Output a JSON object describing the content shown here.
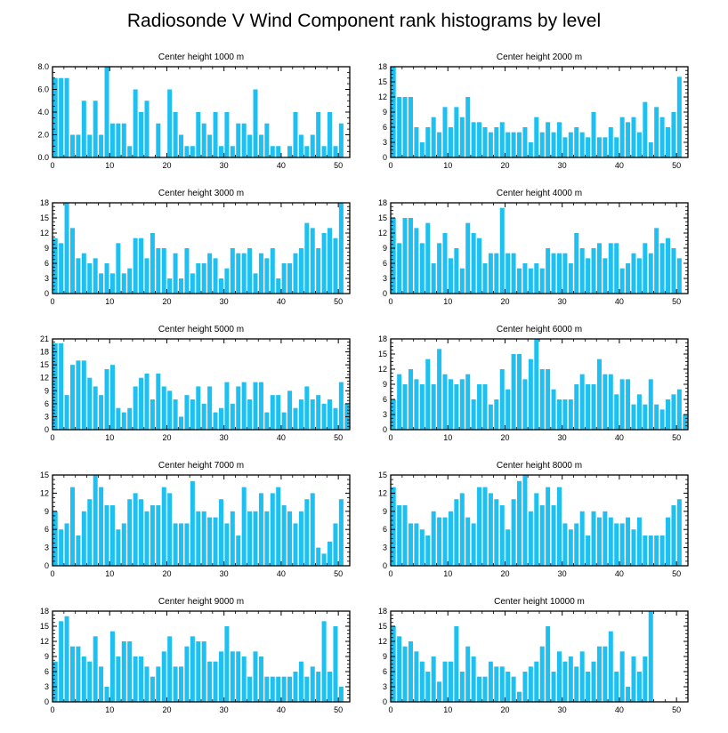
{
  "page_title": "Radiosonde V Wind Component rank histograms by level",
  "colors": {
    "bar": "#1ec0f2",
    "axis": "#000000",
    "background": "#ffffff"
  },
  "chart_data": [
    {
      "type": "bar",
      "title": "Center height 1000 m",
      "x": [
        0,
        1,
        2,
        3,
        4,
        5,
        6,
        7,
        8,
        9,
        10,
        11,
        12,
        13,
        14,
        15,
        16,
        17,
        18,
        19,
        20,
        21,
        22,
        23,
        24,
        25,
        26,
        27,
        28,
        29,
        30,
        31,
        32,
        33,
        34,
        35,
        36,
        37,
        38,
        39,
        40,
        41,
        42,
        43,
        44,
        45,
        46,
        47,
        48,
        49,
        50,
        51
      ],
      "values": [
        7,
        7,
        7,
        2,
        2,
        5,
        2,
        5,
        2,
        8,
        3,
        3,
        3,
        1,
        6,
        4,
        5,
        0,
        3,
        0,
        6,
        4,
        2,
        1,
        1,
        4,
        3,
        2,
        4,
        1,
        4,
        1,
        3,
        3,
        2,
        6,
        2,
        3,
        1,
        1,
        0,
        1,
        4,
        2,
        1,
        2,
        4,
        1,
        4,
        1,
        3,
        0
      ],
      "yticks": [
        "0.0",
        "2.0",
        "4.0",
        "6.0",
        "8.0"
      ],
      "ylim": [
        0,
        8
      ],
      "xticks": [
        "0",
        "10",
        "20",
        "30",
        "40",
        "50"
      ],
      "xlim": [
        0,
        52
      ]
    },
    {
      "type": "bar",
      "title": "Center height 2000 m",
      "x": [
        0,
        1,
        2,
        3,
        4,
        5,
        6,
        7,
        8,
        9,
        10,
        11,
        12,
        13,
        14,
        15,
        16,
        17,
        18,
        19,
        20,
        21,
        22,
        23,
        24,
        25,
        26,
        27,
        28,
        29,
        30,
        31,
        32,
        33,
        34,
        35,
        36,
        37,
        38,
        39,
        40,
        41,
        42,
        43,
        44,
        45,
        46,
        47,
        48,
        49,
        50,
        51
      ],
      "values": [
        18,
        12,
        12,
        12,
        6,
        3,
        6,
        8,
        5,
        10,
        6,
        10,
        8,
        12,
        7,
        7,
        6,
        5,
        6,
        7,
        5,
        5,
        5,
        6,
        3,
        8,
        5,
        7,
        5,
        7,
        4,
        5,
        6,
        5,
        4,
        9,
        4,
        4,
        6,
        4,
        8,
        7,
        8,
        5,
        11,
        3,
        10,
        8,
        6,
        9,
        16,
        0
      ],
      "yticks": [
        "0",
        "3",
        "6",
        "9",
        "12",
        "15",
        "18"
      ],
      "ylim": [
        0,
        18
      ],
      "xticks": [
        "0",
        "10",
        "20",
        "30",
        "40",
        "50"
      ],
      "xlim": [
        0,
        52
      ]
    },
    {
      "type": "bar",
      "title": "Center height 3000 m",
      "x": [
        0,
        1,
        2,
        3,
        4,
        5,
        6,
        7,
        8,
        9,
        10,
        11,
        12,
        13,
        14,
        15,
        16,
        17,
        18,
        19,
        20,
        21,
        22,
        23,
        24,
        25,
        26,
        27,
        28,
        29,
        30,
        31,
        32,
        33,
        34,
        35,
        36,
        37,
        38,
        39,
        40,
        41,
        42,
        43,
        44,
        45,
        46,
        47,
        48,
        49,
        50,
        51
      ],
      "values": [
        11,
        10,
        18,
        13,
        7,
        8,
        6,
        7,
        4,
        6,
        4,
        10,
        4,
        5,
        11,
        11,
        7,
        12,
        9,
        9,
        3,
        8,
        3,
        9,
        4,
        6,
        6,
        8,
        7,
        3,
        5,
        9,
        8,
        8,
        9,
        4,
        8,
        7,
        9,
        3,
        6,
        6,
        8,
        9,
        14,
        13,
        9,
        12,
        13,
        11,
        18,
        0
      ],
      "yticks": [
        "0",
        "3",
        "6",
        "9",
        "12",
        "15",
        "18"
      ],
      "ylim": [
        0,
        18
      ],
      "xticks": [
        "0",
        "10",
        "20",
        "30",
        "40",
        "50"
      ],
      "xlim": [
        0,
        52
      ]
    },
    {
      "type": "bar",
      "title": "Center height 4000 m",
      "x": [
        0,
        1,
        2,
        3,
        4,
        5,
        6,
        7,
        8,
        9,
        10,
        11,
        12,
        13,
        14,
        15,
        16,
        17,
        18,
        19,
        20,
        21,
        22,
        23,
        24,
        25,
        26,
        27,
        28,
        29,
        30,
        31,
        32,
        33,
        34,
        35,
        36,
        37,
        38,
        39,
        40,
        41,
        42,
        43,
        44,
        45,
        46,
        47,
        48,
        49,
        50,
        51
      ],
      "values": [
        15,
        10,
        15,
        15,
        13,
        10,
        14,
        6,
        10,
        12,
        7,
        9,
        5,
        14,
        12,
        11,
        6,
        8,
        8,
        17,
        8,
        8,
        5,
        6,
        5,
        6,
        5,
        9,
        8,
        8,
        8,
        6,
        12,
        9,
        7,
        9,
        10,
        7,
        10,
        10,
        5,
        6,
        8,
        7,
        10,
        8,
        13,
        10,
        11,
        9,
        7,
        0
      ],
      "yticks": [
        "0",
        "3",
        "6",
        "9",
        "12",
        "15",
        "18"
      ],
      "ylim": [
        0,
        18
      ],
      "xticks": [
        "0",
        "10",
        "20",
        "30",
        "40",
        "50"
      ],
      "xlim": [
        0,
        52
      ]
    },
    {
      "type": "bar",
      "title": "Center height 5000 m",
      "x": [
        0,
        1,
        2,
        3,
        4,
        5,
        6,
        7,
        8,
        9,
        10,
        11,
        12,
        13,
        14,
        15,
        16,
        17,
        18,
        19,
        20,
        21,
        22,
        23,
        24,
        25,
        26,
        27,
        28,
        29,
        30,
        31,
        32,
        33,
        34,
        35,
        36,
        37,
        38,
        39,
        40,
        41,
        42,
        43,
        44,
        45,
        46,
        47,
        48,
        49,
        50,
        51
      ],
      "values": [
        20,
        20,
        8,
        15,
        16,
        16,
        12,
        10,
        8,
        14,
        15,
        5,
        4,
        5,
        10,
        12,
        13,
        7,
        13,
        10,
        9,
        7,
        3,
        8,
        7,
        10,
        6,
        10,
        4,
        5,
        11,
        6,
        10,
        11,
        7,
        11,
        11,
        4,
        8,
        8,
        4,
        9,
        5,
        7,
        10,
        7,
        8,
        6,
        7,
        5,
        11,
        6
      ],
      "yticks": [
        "0",
        "3",
        "6",
        "9",
        "12",
        "15",
        "18",
        "21"
      ],
      "ylim": [
        0,
        21
      ],
      "xticks": [
        "0",
        "10",
        "20",
        "30",
        "40",
        "50"
      ],
      "xlim": [
        0,
        52
      ]
    },
    {
      "type": "bar",
      "title": "Center height 6000 m",
      "x": [
        0,
        1,
        2,
        3,
        4,
        5,
        6,
        7,
        8,
        9,
        10,
        11,
        12,
        13,
        14,
        15,
        16,
        17,
        18,
        19,
        20,
        21,
        22,
        23,
        24,
        25,
        26,
        27,
        28,
        29,
        30,
        31,
        32,
        33,
        34,
        35,
        36,
        37,
        38,
        39,
        40,
        41,
        42,
        43,
        44,
        45,
        46,
        47,
        48,
        49,
        50,
        51
      ],
      "values": [
        6,
        11,
        9,
        12,
        10,
        9,
        14,
        9,
        16,
        11,
        10,
        9,
        10,
        11,
        6,
        9,
        9,
        5,
        6,
        12,
        8,
        15,
        15,
        10,
        14,
        18,
        12,
        12,
        8,
        6,
        6,
        6,
        9,
        11,
        9,
        9,
        14,
        11,
        11,
        7,
        10,
        10,
        5,
        7,
        5,
        10,
        5,
        4,
        6,
        7,
        8,
        3
      ],
      "yticks": [
        "0",
        "3",
        "6",
        "9",
        "12",
        "15",
        "18"
      ],
      "ylim": [
        0,
        18
      ],
      "xticks": [
        "0",
        "10",
        "20",
        "30",
        "40",
        "50"
      ],
      "xlim": [
        0,
        52
      ]
    },
    {
      "type": "bar",
      "title": "Center height 7000 m",
      "x": [
        0,
        1,
        2,
        3,
        4,
        5,
        6,
        7,
        8,
        9,
        10,
        11,
        12,
        13,
        14,
        15,
        16,
        17,
        18,
        19,
        20,
        21,
        22,
        23,
        24,
        25,
        26,
        27,
        28,
        29,
        30,
        31,
        32,
        33,
        34,
        35,
        36,
        37,
        38,
        39,
        40,
        41,
        42,
        43,
        44,
        45,
        46,
        47,
        48,
        49,
        50,
        51
      ],
      "values": [
        9,
        6,
        7,
        13,
        5,
        9,
        11,
        15,
        13,
        10,
        10,
        6,
        7,
        11,
        12,
        11,
        9,
        10,
        10,
        13,
        12,
        7,
        7,
        7,
        14,
        9,
        9,
        8,
        8,
        11,
        7,
        9,
        5,
        13,
        9,
        9,
        12,
        9,
        12,
        13,
        10,
        9,
        7,
        9,
        11,
        12,
        3,
        2,
        4,
        7,
        11,
        0
      ],
      "yticks": [
        "0",
        "3",
        "6",
        "9",
        "12",
        "15"
      ],
      "ylim": [
        0,
        15
      ],
      "xticks": [
        "0",
        "10",
        "20",
        "30",
        "40",
        "50"
      ],
      "xlim": [
        0,
        52
      ]
    },
    {
      "type": "bar",
      "title": "Center height 8000 m",
      "x": [
        0,
        1,
        2,
        3,
        4,
        5,
        6,
        7,
        8,
        9,
        10,
        11,
        12,
        13,
        14,
        15,
        16,
        17,
        18,
        19,
        20,
        21,
        22,
        23,
        24,
        25,
        26,
        27,
        28,
        29,
        30,
        31,
        32,
        33,
        34,
        35,
        36,
        37,
        38,
        39,
        40,
        41,
        42,
        43,
        44,
        45,
        46,
        47,
        48,
        49,
        50,
        51
      ],
      "values": [
        13,
        10,
        10,
        7,
        7,
        6,
        5,
        9,
        8,
        8,
        9,
        11,
        12,
        8,
        7,
        13,
        13,
        12,
        11,
        10,
        6,
        11,
        14,
        15,
        9,
        12,
        10,
        13,
        10,
        13,
        7,
        6,
        7,
        9,
        5,
        9,
        8,
        9,
        8,
        7,
        7,
        8,
        6,
        8,
        5,
        5,
        5,
        5,
        8,
        10,
        11,
        0
      ],
      "yticks": [
        "0",
        "3",
        "6",
        "9",
        "12",
        "15"
      ],
      "ylim": [
        0,
        15
      ],
      "xticks": [
        "0",
        "10",
        "20",
        "30",
        "40",
        "50"
      ],
      "xlim": [
        0,
        52
      ]
    },
    {
      "type": "bar",
      "title": "Center height 9000 m",
      "x": [
        0,
        1,
        2,
        3,
        4,
        5,
        6,
        7,
        8,
        9,
        10,
        11,
        12,
        13,
        14,
        15,
        16,
        17,
        18,
        19,
        20,
        21,
        22,
        23,
        24,
        25,
        26,
        27,
        28,
        29,
        30,
        31,
        32,
        33,
        34,
        35,
        36,
        37,
        38,
        39,
        40,
        41,
        42,
        43,
        44,
        45,
        46,
        47,
        48,
        49,
        50,
        51
      ],
      "values": [
        8,
        16,
        17,
        11,
        11,
        9,
        8,
        13,
        7,
        3,
        14,
        9,
        12,
        12,
        9,
        9,
        7,
        5,
        7,
        10,
        13,
        7,
        7,
        11,
        13,
        12,
        12,
        8,
        8,
        10,
        15,
        10,
        10,
        9,
        5,
        10,
        9,
        5,
        5,
        5,
        5,
        5,
        6,
        8,
        5,
        7,
        6,
        16,
        6,
        15,
        3,
        0
      ],
      "yticks": [
        "0",
        "3",
        "6",
        "9",
        "12",
        "15",
        "18"
      ],
      "ylim": [
        0,
        18
      ],
      "xticks": [
        "0",
        "10",
        "20",
        "30",
        "40",
        "50"
      ],
      "xlim": [
        0,
        52
      ]
    },
    {
      "type": "bar",
      "title": "Center height 10000 m",
      "x": [
        0,
        1,
        2,
        3,
        4,
        5,
        6,
        7,
        8,
        9,
        10,
        11,
        12,
        13,
        14,
        15,
        16,
        17,
        18,
        19,
        20,
        21,
        22,
        23,
        24,
        25,
        26,
        27,
        28,
        29,
        30,
        31,
        32,
        33,
        34,
        35,
        36,
        37,
        38,
        39,
        40,
        41,
        42,
        43,
        44,
        45,
        46,
        47,
        48,
        49,
        50,
        51
      ],
      "values": [
        15,
        13,
        11,
        12,
        10,
        8,
        6,
        9,
        4,
        8,
        8,
        15,
        6,
        11,
        9,
        5,
        5,
        8,
        7,
        7,
        6,
        5,
        2,
        6,
        7,
        8,
        11,
        15,
        6,
        10,
        8,
        9,
        7,
        10,
        6,
        8,
        11,
        11,
        14,
        6,
        10,
        3,
        9,
        6,
        9,
        18,
        0,
        0,
        0,
        0,
        0,
        0
      ],
      "yticks": [
        "0",
        "3",
        "6",
        "9",
        "12",
        "15",
        "18"
      ],
      "ylim": [
        0,
        18
      ],
      "xticks": [
        "0",
        "10",
        "20",
        "30",
        "40",
        "50"
      ],
      "xlim": [
        0,
        52
      ]
    }
  ]
}
